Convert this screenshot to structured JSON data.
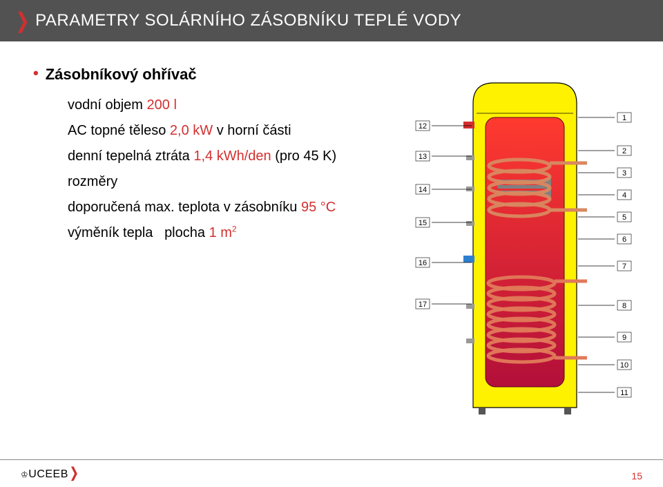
{
  "header": {
    "title": "PARAMETRY SOLÁRNÍHO ZÁSOBNÍKU TEPLÉ VODY"
  },
  "bullet": {
    "title": "Zásobníkový ohřívač"
  },
  "specs": {
    "volume_label": "vodní objem",
    "volume_value": "200 l",
    "heater_label_a": "AC topné těleso",
    "heater_value": "2,0 kW",
    "heater_label_b": "v horní části",
    "loss_label_a": "denní tepelná ztráta",
    "loss_value": "1,4 kWh/den",
    "loss_label_b": "(pro 45 K)",
    "dims_label": "rozměry",
    "maxtemp_label_a": "doporučená max. teplota v zásobníku",
    "maxtemp_value": "95 °C",
    "exch_label_a": "výměník tepla",
    "exch_label_b": "plocha",
    "exch_value": "1 m",
    "exch_sup": "2"
  },
  "diagram": {
    "body_fill": "#fff200",
    "body_stroke": "#000000",
    "tank_fill_top": "#ff3a2f",
    "tank_fill_bot": "#b30f3a",
    "coil_color": "#e07a5a",
    "coil_color_top": "#d88860",
    "heater_color": "#808080",
    "port_hot": "#d32f2f",
    "port_cold": "#2e7fd1",
    "left_labels": [
      "12",
      "13",
      "14",
      "15",
      "16",
      "17"
    ],
    "right_labels": [
      "1",
      "2",
      "3",
      "4",
      "5",
      "6",
      "7",
      "8",
      "9",
      "10",
      "11"
    ],
    "left_y": [
      92,
      136,
      184,
      232,
      290,
      350
    ],
    "right_y": [
      80,
      128,
      160,
      192,
      224,
      256,
      295,
      352,
      398,
      438,
      478
    ],
    "label_fontsize": 11
  },
  "footer": {
    "logo_text": "UCEEB",
    "page": "15"
  }
}
